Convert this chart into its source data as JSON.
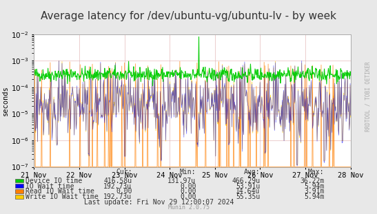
{
  "title": "Average latency for /dev/ubuntu-vg/ubuntu-lv - by week",
  "ylabel": "seconds",
  "background_color": "#ffffff",
  "plot_bg_color": "#ffffff",
  "grid_color": "#e0e0e0",
  "border_color": "#aaaaaa",
  "ylim_low": 1e-07,
  "ylim_high": 0.01,
  "x_ticks_labels": [
    "21 Nov",
    "22 Nov",
    "23 Nov",
    "24 Nov",
    "25 Nov",
    "26 Nov",
    "27 Nov",
    "28 Nov"
  ],
  "legend_labels": [
    "Device IO time",
    "IO Wait time",
    "Read IO Wait time",
    "Write IO Wait time"
  ],
  "legend_colors": [
    "#00cc00",
    "#0000ff",
    "#ff7f00",
    "#ffcc00"
  ],
  "legend_cur": [
    "416.58u",
    "192.73u",
    "0.00",
    "192.73u"
  ],
  "legend_min": [
    "131.97u",
    "0.00",
    "0.00",
    "0.00"
  ],
  "legend_avg": [
    "466.29u",
    "53.91u",
    "14.64u",
    "55.35u"
  ],
  "legend_max": [
    "36.22m",
    "5.94m",
    "3.91m",
    "5.94m"
  ],
  "last_update": "Last update: Fri Nov 29 12:00:07 2024",
  "muninversion": "Munin 2.0.75",
  "watermark": "RRDTOOL / TOBI OETIKER",
  "title_fontsize": 11,
  "axis_fontsize": 7.5,
  "legend_fontsize": 7,
  "seed": 42,
  "n_points": 700
}
